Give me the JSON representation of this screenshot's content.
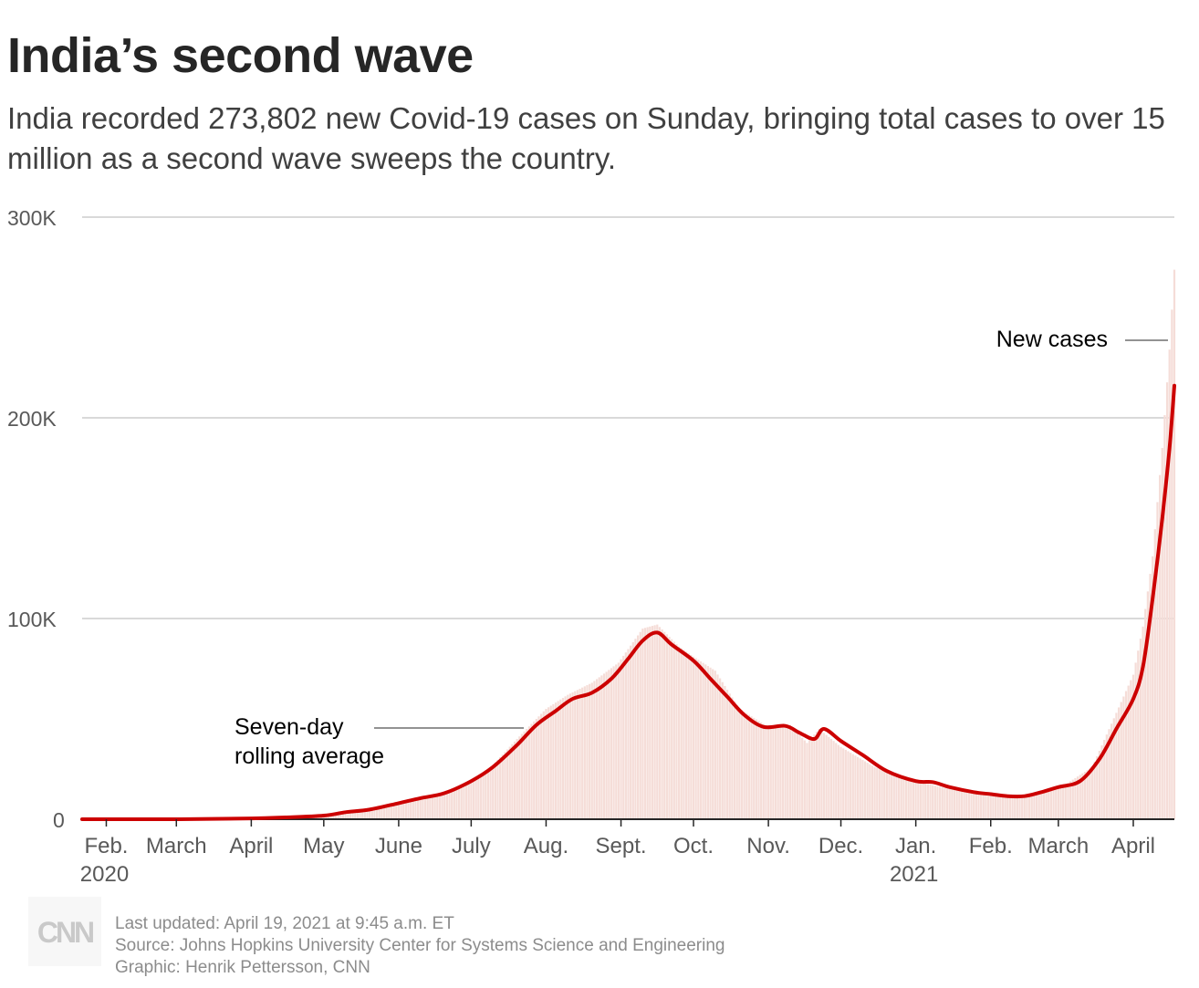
{
  "header": {
    "title": "India’s second wave",
    "subtitle": "India recorded 273,802 new Covid-19 cases on Sunday, bringing total cases to over 15 million as a second wave sweeps the country."
  },
  "footer": {
    "updated": "Last updated: April 19, 2021 at 9:45 a.m. ET",
    "source": "Source: Johns Hopkins University Center for Systems Science and Engineering",
    "credit": "Graphic: Henrik Pettersson, CNN"
  },
  "logo": {
    "text": "CNN",
    "color": "#c9c9c9"
  },
  "chart_data": {
    "type": "bar",
    "title": "India’s second wave",
    "xlabel": "",
    "ylabel": "",
    "ylim": [
      0,
      300000
    ],
    "yticks": [
      {
        "value": 0,
        "label": "0"
      },
      {
        "value": 100000,
        "label": "100K"
      },
      {
        "value": 200000,
        "label": "200K"
      },
      {
        "value": 300000,
        "label": "300K"
      }
    ],
    "grid": true,
    "x_range": [
      "2020-01-22",
      "2021-04-18"
    ],
    "xticks": [
      {
        "date": "2020-02-01",
        "label": "Feb.",
        "sublabel": "2020"
      },
      {
        "date": "2020-03-01",
        "label": "March"
      },
      {
        "date": "2020-04-01",
        "label": "April"
      },
      {
        "date": "2020-05-01",
        "label": "May"
      },
      {
        "date": "2020-06-01",
        "label": "June"
      },
      {
        "date": "2020-07-01",
        "label": "July"
      },
      {
        "date": "2020-08-01",
        "label": "Aug."
      },
      {
        "date": "2020-09-01",
        "label": "Sept."
      },
      {
        "date": "2020-10-01",
        "label": "Oct."
      },
      {
        "date": "2020-11-01",
        "label": "Nov."
      },
      {
        "date": "2020-12-01",
        "label": "Dec."
      },
      {
        "date": "2021-01-01",
        "label": "Jan.",
        "sublabel": "2021"
      },
      {
        "date": "2021-02-01",
        "label": "Feb."
      },
      {
        "date": "2021-03-01",
        "label": "March"
      },
      {
        "date": "2021-04-01",
        "label": "April"
      }
    ],
    "series": [
      {
        "name": "New cases",
        "type": "bar",
        "color": "#f5ddd8",
        "points": [
          [
            "2020-01-22",
            0
          ],
          [
            "2020-03-01",
            0
          ],
          [
            "2020-03-20",
            100
          ],
          [
            "2020-04-01",
            1000
          ],
          [
            "2020-04-15",
            1100
          ],
          [
            "2020-05-01",
            2000
          ],
          [
            "2020-05-15",
            3900
          ],
          [
            "2020-06-01",
            8000
          ],
          [
            "2020-06-15",
            11500
          ],
          [
            "2020-07-01",
            19000
          ],
          [
            "2020-07-10",
            27000
          ],
          [
            "2020-07-20",
            40000
          ],
          [
            "2020-08-01",
            55000
          ],
          [
            "2020-08-10",
            62000
          ],
          [
            "2020-08-20",
            68000
          ],
          [
            "2020-08-31",
            78000
          ],
          [
            "2020-09-10",
            95000
          ],
          [
            "2020-09-16",
            97000
          ],
          [
            "2020-09-25",
            86000
          ],
          [
            "2020-10-01",
            81000
          ],
          [
            "2020-10-10",
            74000
          ],
          [
            "2020-10-20",
            55000
          ],
          [
            "2020-11-01",
            46000
          ],
          [
            "2020-11-10",
            47000
          ],
          [
            "2020-11-17",
            38000
          ],
          [
            "2020-11-22",
            45000
          ],
          [
            "2020-12-01",
            36000
          ],
          [
            "2020-12-15",
            26000
          ],
          [
            "2021-01-01",
            19000
          ],
          [
            "2021-01-15",
            15000
          ],
          [
            "2021-02-01",
            11500
          ],
          [
            "2021-02-15",
            11000
          ],
          [
            "2021-03-01",
            15000
          ],
          [
            "2021-03-15",
            26000
          ],
          [
            "2021-03-25",
            53000
          ],
          [
            "2021-04-01",
            72000
          ],
          [
            "2021-04-05",
            96000
          ],
          [
            "2021-04-09",
            131000
          ],
          [
            "2021-04-13",
            185000
          ],
          [
            "2021-04-16",
            234000
          ],
          [
            "2021-04-18",
            273802
          ]
        ]
      },
      {
        "name": "Seven-day rolling average",
        "type": "line",
        "color": "#cc0000",
        "points": [
          [
            "2020-01-22",
            0
          ],
          [
            "2020-03-01",
            0
          ],
          [
            "2020-04-01",
            400
          ],
          [
            "2020-04-15",
            900
          ],
          [
            "2020-05-01",
            1800
          ],
          [
            "2020-05-10",
            3500
          ],
          [
            "2020-05-20",
            4800
          ],
          [
            "2020-06-01",
            8000
          ],
          [
            "2020-06-10",
            10500
          ],
          [
            "2020-06-20",
            13000
          ],
          [
            "2020-07-01",
            19000
          ],
          [
            "2020-07-10",
            26000
          ],
          [
            "2020-07-20",
            37000
          ],
          [
            "2020-07-28",
            47000
          ],
          [
            "2020-08-05",
            54000
          ],
          [
            "2020-08-12",
            60000
          ],
          [
            "2020-08-20",
            63000
          ],
          [
            "2020-08-28",
            70000
          ],
          [
            "2020-09-04",
            80000
          ],
          [
            "2020-09-10",
            89000
          ],
          [
            "2020-09-16",
            93000
          ],
          [
            "2020-09-22",
            87000
          ],
          [
            "2020-10-01",
            79000
          ],
          [
            "2020-10-08",
            70000
          ],
          [
            "2020-10-15",
            61000
          ],
          [
            "2020-10-22",
            52000
          ],
          [
            "2020-10-30",
            46000
          ],
          [
            "2020-11-08",
            46500
          ],
          [
            "2020-11-14",
            43000
          ],
          [
            "2020-11-20",
            40000
          ],
          [
            "2020-11-24",
            45000
          ],
          [
            "2020-12-01",
            39000
          ],
          [
            "2020-12-10",
            32000
          ],
          [
            "2020-12-20",
            24000
          ],
          [
            "2021-01-01",
            19000
          ],
          [
            "2021-01-08",
            18500
          ],
          [
            "2021-01-15",
            16000
          ],
          [
            "2021-01-25",
            13500
          ],
          [
            "2021-02-01",
            12500
          ],
          [
            "2021-02-08",
            11500
          ],
          [
            "2021-02-15",
            11500
          ],
          [
            "2021-02-22",
            13500
          ],
          [
            "2021-03-01",
            16000
          ],
          [
            "2021-03-10",
            19000
          ],
          [
            "2021-03-18",
            30000
          ],
          [
            "2021-03-25",
            45000
          ],
          [
            "2021-04-01",
            60000
          ],
          [
            "2021-04-05",
            76000
          ],
          [
            "2021-04-09",
            110000
          ],
          [
            "2021-04-13",
            150000
          ],
          [
            "2021-04-16",
            185000
          ],
          [
            "2021-04-18",
            216000
          ]
        ]
      }
    ],
    "annotations": [
      {
        "text": "New cases",
        "series": "New cases"
      },
      {
        "lines": [
          "Seven-day",
          "rolling average"
        ],
        "series": "Seven-day rolling average"
      }
    ],
    "colors": {
      "grid": "#d9d9d9",
      "tick_text": "#595959",
      "axis": "#262626"
    }
  }
}
